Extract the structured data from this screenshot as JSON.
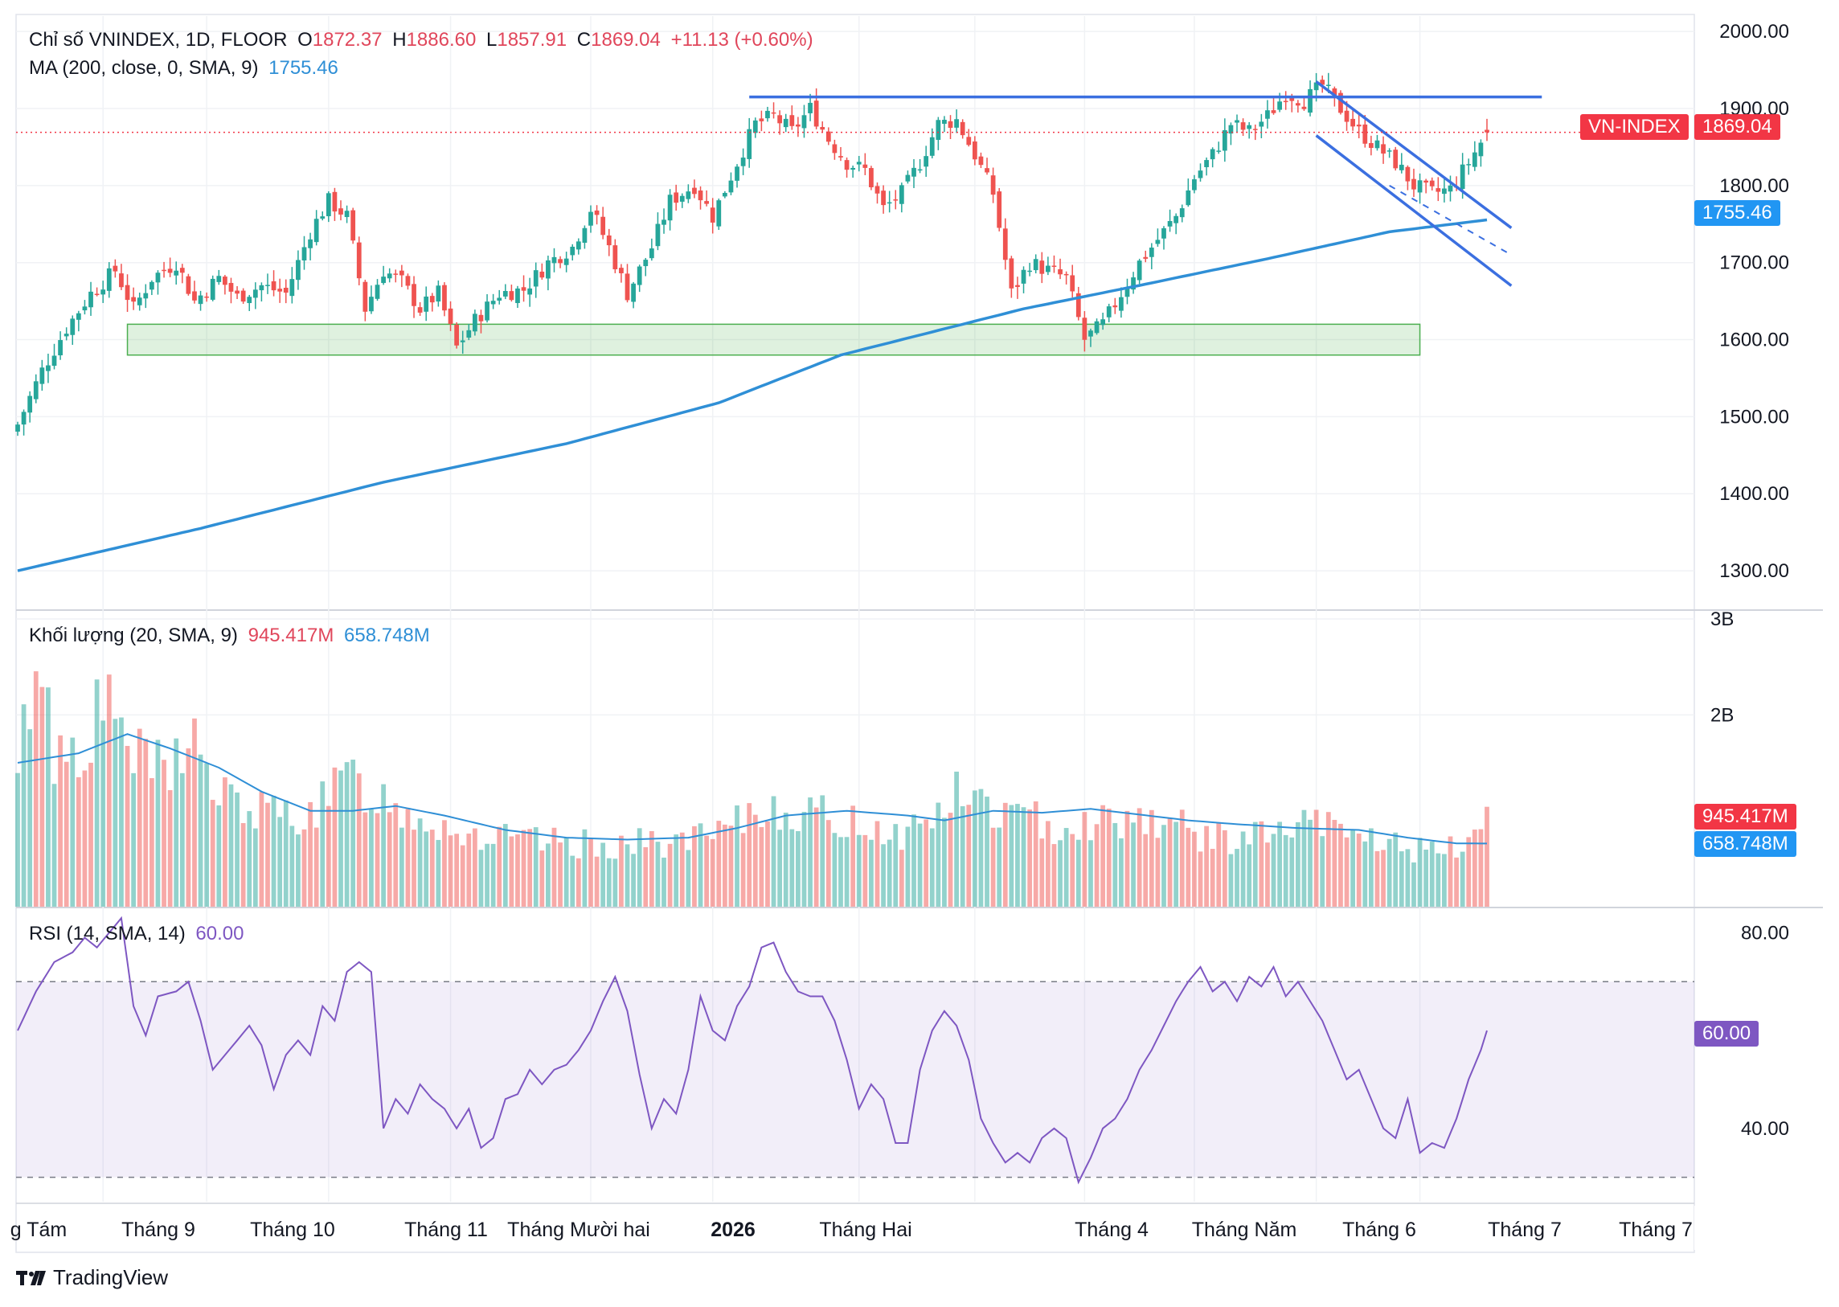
{
  "legend": {
    "main": {
      "title": "Chỉ số VNINDEX, 1D, FLOOR",
      "o_label": "O",
      "o_value": "1872.37",
      "h_label": "H",
      "h_value": "1886.60",
      "l_label": "L",
      "l_value": "1857.91",
      "c_label": "C",
      "c_value": "1869.04",
      "change": "+11.13 (+0.60%)"
    },
    "ma": {
      "label": "MA (200, close, 0, SMA, 9)",
      "value": "1755.46"
    },
    "volume": {
      "label": "Khối lượng (20, SMA, 9)",
      "value1": "945.417M",
      "value2": "658.748M"
    },
    "rsi": {
      "label": "RSI (14, SMA, 14)",
      "value": "60.00"
    }
  },
  "tags": {
    "symbol": "VN-INDEX",
    "price": "1869.04",
    "ma": "1755.46",
    "vol1": "945.417M",
    "vol2": "658.748M",
    "rsi": "60.00"
  },
  "brand": "TradingView",
  "colors": {
    "up": "#26a69a",
    "down": "#ef5350",
    "ma": "#2f8fd6",
    "trendline": "#3b6fe0",
    "zone": "#4caf50",
    "rsi": "#7e57c2"
  },
  "chart_data": [
    {
      "type": "candlestick",
      "title": "Chỉ số VNINDEX, 1D, FLOOR",
      "y_ticks": [
        "2000.00",
        "1900.00",
        "1800.00",
        "1700.00",
        "1600.00",
        "1500.00",
        "1400.00",
        "1300.00"
      ],
      "ylim": [
        1250,
        2020
      ],
      "x_ticks": [
        "g Tám",
        "Tháng 9",
        "Tháng 10",
        "Tháng 11",
        "Tháng Mười hai",
        "2026",
        "Tháng Hai",
        "Tháng 4",
        "Tháng Năm",
        "Tháng 6",
        "Tháng 7",
        "Tháng 7"
      ],
      "close_path": [
        [
          0,
          1490
        ],
        [
          4,
          1560
        ],
        [
          8,
          1615
        ],
        [
          12,
          1660
        ],
        [
          16,
          1690
        ],
        [
          19,
          1640
        ],
        [
          22,
          1680
        ],
        [
          26,
          1700
        ],
        [
          29,
          1650
        ],
        [
          33,
          1680
        ],
        [
          36,
          1655
        ],
        [
          40,
          1670
        ],
        [
          44,
          1660
        ],
        [
          48,
          1740
        ],
        [
          51,
          1780
        ],
        [
          54,
          1760
        ],
        [
          57,
          1640
        ],
        [
          60,
          1690
        ],
        [
          63,
          1675
        ],
        [
          66,
          1640
        ],
        [
          69,
          1660
        ],
        [
          72,
          1590
        ],
        [
          75,
          1625
        ],
        [
          79,
          1660
        ],
        [
          83,
          1665
        ],
        [
          87,
          1700
        ],
        [
          91,
          1720
        ],
        [
          94,
          1770
        ],
        [
          97,
          1720
        ],
        [
          100,
          1660
        ],
        [
          104,
          1720
        ],
        [
          107,
          1780
        ],
        [
          111,
          1800
        ],
        [
          114,
          1760
        ],
        [
          118,
          1830
        ],
        [
          121,
          1880
        ],
        [
          124,
          1890
        ],
        [
          127,
          1870
        ],
        [
          130,
          1900
        ],
        [
          133,
          1860
        ],
        [
          136,
          1830
        ],
        [
          139,
          1820
        ],
        [
          142,
          1770
        ],
        [
          145,
          1790
        ],
        [
          148,
          1830
        ],
        [
          151,
          1880
        ],
        [
          154,
          1885
        ],
        [
          157,
          1840
        ],
        [
          160,
          1790
        ],
        [
          163,
          1660
        ],
        [
          166,
          1700
        ],
        [
          169,
          1690
        ],
        [
          172,
          1680
        ],
        [
          175,
          1600
        ],
        [
          178,
          1620
        ],
        [
          181,
          1660
        ],
        [
          184,
          1700
        ],
        [
          187,
          1730
        ],
        [
          190,
          1760
        ],
        [
          193,
          1810
        ],
        [
          196,
          1840
        ],
        [
          199,
          1880
        ],
        [
          202,
          1870
        ],
        [
          205,
          1890
        ],
        [
          208,
          1920
        ],
        [
          211,
          1910
        ],
        [
          214,
          1930
        ],
        [
          217,
          1900
        ],
        [
          220,
          1870
        ],
        [
          223,
          1850
        ],
        [
          226,
          1830
        ],
        [
          229,
          1800
        ],
        [
          232,
          1790
        ],
        [
          235,
          1795
        ],
        [
          238,
          1830
        ],
        [
          241,
          1869.04
        ]
      ],
      "n_bars": 242,
      "last": {
        "open": 1872.37,
        "high": 1886.6,
        "low": 1857.91,
        "close": 1869.04,
        "change": 11.13,
        "change_pct": 0.6
      },
      "ma200": {
        "name": "MA (200, close, 0, SMA, 9)",
        "path": [
          [
            0,
            1300
          ],
          [
            30,
            1355
          ],
          [
            60,
            1415
          ],
          [
            90,
            1465
          ],
          [
            115,
            1518
          ],
          [
            135,
            1580
          ],
          [
            150,
            1610
          ],
          [
            165,
            1640
          ],
          [
            185,
            1672
          ],
          [
            205,
            1705
          ],
          [
            225,
            1740
          ],
          [
            241,
            1755.46
          ]
        ],
        "last": 1755.46
      },
      "support_zone": {
        "from_bar": 18,
        "to_bar": 230,
        "low": 1580,
        "high": 1620
      },
      "resistance_line": {
        "from_bar": 120,
        "to_bar": 250,
        "value": 1915
      },
      "channel": {
        "upper": [
          [
            213,
            1935
          ],
          [
            245,
            1745
          ]
        ],
        "lower": [
          [
            213,
            1865
          ],
          [
            245,
            1670
          ]
        ],
        "mid_dashed": [
          [
            225,
            1800
          ],
          [
            245,
            1710
          ]
        ]
      },
      "current_price_line": 1869.04
    },
    {
      "type": "bar",
      "title": "Khối lượng (20, SMA, 9)",
      "y_ticks": [
        "3B",
        "2B"
      ],
      "ylim": [
        0,
        3.0
      ],
      "units": "B",
      "last_volume": "945.417M",
      "last_sma": "658.748M",
      "volume_path": [
        [
          0,
          1.25
        ],
        [
          3,
          2.8
        ],
        [
          6,
          1.6
        ],
        [
          10,
          1.7
        ],
        [
          14,
          2.05
        ],
        [
          17,
          1.9
        ],
        [
          20,
          1.5
        ],
        [
          25,
          1.4
        ],
        [
          28,
          1.9
        ],
        [
          32,
          1.2
        ],
        [
          38,
          1.0
        ],
        [
          45,
          0.95
        ],
        [
          50,
          1.05
        ],
        [
          54,
          1.35
        ],
        [
          58,
          1.2
        ],
        [
          62,
          1.05
        ],
        [
          68,
          0.9
        ],
        [
          74,
          0.75
        ],
        [
          80,
          0.7
        ],
        [
          90,
          0.65
        ],
        [
          100,
          0.65
        ],
        [
          110,
          0.68
        ],
        [
          116,
          0.75
        ],
        [
          120,
          0.95
        ],
        [
          125,
          1.05
        ],
        [
          130,
          0.95
        ],
        [
          140,
          0.85
        ],
        [
          145,
          0.75
        ],
        [
          150,
          0.95
        ],
        [
          155,
          1.2
        ],
        [
          160,
          1.0
        ],
        [
          166,
          0.9
        ],
        [
          172,
          0.85
        ],
        [
          178,
          0.9
        ],
        [
          185,
          0.95
        ],
        [
          190,
          0.85
        ],
        [
          196,
          0.7
        ],
        [
          205,
          0.75
        ],
        [
          213,
          0.85
        ],
        [
          220,
          0.75
        ],
        [
          226,
          0.65
        ],
        [
          232,
          0.55
        ],
        [
          236,
          0.6
        ],
        [
          241,
          0.95
        ]
      ],
      "sma_path": [
        [
          0,
          1.5
        ],
        [
          10,
          1.6
        ],
        [
          18,
          1.8
        ],
        [
          25,
          1.65
        ],
        [
          33,
          1.45
        ],
        [
          40,
          1.2
        ],
        [
          48,
          1.0
        ],
        [
          55,
          1.0
        ],
        [
          62,
          1.05
        ],
        [
          70,
          0.95
        ],
        [
          80,
          0.8
        ],
        [
          90,
          0.72
        ],
        [
          100,
          0.7
        ],
        [
          110,
          0.72
        ],
        [
          118,
          0.82
        ],
        [
          126,
          0.95
        ],
        [
          136,
          1.0
        ],
        [
          146,
          0.95
        ],
        [
          152,
          0.9
        ],
        [
          160,
          1.0
        ],
        [
          168,
          0.98
        ],
        [
          176,
          1.02
        ],
        [
          184,
          0.96
        ],
        [
          192,
          0.9
        ],
        [
          200,
          0.86
        ],
        [
          210,
          0.82
        ],
        [
          220,
          0.8
        ],
        [
          228,
          0.72
        ],
        [
          236,
          0.66
        ],
        [
          241,
          0.658748
        ]
      ]
    },
    {
      "type": "line",
      "title": "RSI (14, SMA, 14)",
      "y_ticks": [
        "80.00",
        "40.00"
      ],
      "ylim": [
        25,
        85
      ],
      "bands": [
        30,
        70
      ],
      "last": 60.0,
      "path": [
        [
          0,
          60
        ],
        [
          3,
          68
        ],
        [
          6,
          74
        ],
        [
          9,
          76
        ],
        [
          11,
          79
        ],
        [
          13,
          77
        ],
        [
          15,
          80
        ],
        [
          17,
          83
        ],
        [
          19,
          65
        ],
        [
          21,
          59
        ],
        [
          23,
          67
        ],
        [
          26,
          68
        ],
        [
          28,
          70
        ],
        [
          30,
          62
        ],
        [
          32,
          52
        ],
        [
          34,
          55
        ],
        [
          36,
          58
        ],
        [
          38,
          61
        ],
        [
          40,
          57
        ],
        [
          42,
          48
        ],
        [
          44,
          55
        ],
        [
          46,
          58
        ],
        [
          48,
          55
        ],
        [
          50,
          65
        ],
        [
          52,
          62
        ],
        [
          54,
          72
        ],
        [
          56,
          74
        ],
        [
          58,
          72
        ],
        [
          60,
          40
        ],
        [
          62,
          46
        ],
        [
          64,
          43
        ],
        [
          66,
          49
        ],
        [
          68,
          46
        ],
        [
          70,
          44
        ],
        [
          72,
          40
        ],
        [
          74,
          44
        ],
        [
          76,
          36
        ],
        [
          78,
          38
        ],
        [
          80,
          46
        ],
        [
          82,
          47
        ],
        [
          84,
          52
        ],
        [
          86,
          49
        ],
        [
          88,
          52
        ],
        [
          90,
          53
        ],
        [
          92,
          56
        ],
        [
          94,
          60
        ],
        [
          96,
          66
        ],
        [
          98,
          71
        ],
        [
          100,
          64
        ],
        [
          102,
          51
        ],
        [
          104,
          40
        ],
        [
          106,
          46
        ],
        [
          108,
          43
        ],
        [
          110,
          52
        ],
        [
          112,
          67
        ],
        [
          114,
          60
        ],
        [
          116,
          58
        ],
        [
          118,
          65
        ],
        [
          120,
          69
        ],
        [
          122,
          77
        ],
        [
          124,
          78
        ],
        [
          126,
          72
        ],
        [
          128,
          68
        ],
        [
          130,
          67
        ],
        [
          132,
          67
        ],
        [
          134,
          62
        ],
        [
          136,
          54
        ],
        [
          138,
          44
        ],
        [
          140,
          49
        ],
        [
          142,
          46
        ],
        [
          144,
          37
        ],
        [
          146,
          37
        ],
        [
          148,
          52
        ],
        [
          150,
          60
        ],
        [
          152,
          64
        ],
        [
          154,
          61
        ],
        [
          156,
          54
        ],
        [
          158,
          42
        ],
        [
          160,
          37
        ],
        [
          162,
          33
        ],
        [
          164,
          35
        ],
        [
          166,
          33
        ],
        [
          168,
          38
        ],
        [
          170,
          40
        ],
        [
          172,
          38
        ],
        [
          174,
          29
        ],
        [
          176,
          34
        ],
        [
          178,
          40
        ],
        [
          180,
          42
        ],
        [
          182,
          46
        ],
        [
          184,
          52
        ],
        [
          186,
          56
        ],
        [
          188,
          61
        ],
        [
          190,
          66
        ],
        [
          192,
          70
        ],
        [
          194,
          73
        ],
        [
          196,
          68
        ],
        [
          198,
          70
        ],
        [
          200,
          66
        ],
        [
          202,
          71
        ],
        [
          204,
          69
        ],
        [
          206,
          73
        ],
        [
          208,
          67
        ],
        [
          210,
          70
        ],
        [
          212,
          66
        ],
        [
          214,
          62
        ],
        [
          216,
          56
        ],
        [
          218,
          50
        ],
        [
          220,
          52
        ],
        [
          222,
          46
        ],
        [
          224,
          40
        ],
        [
          226,
          38
        ],
        [
          228,
          46
        ],
        [
          230,
          35
        ],
        [
          232,
          37
        ],
        [
          234,
          36
        ],
        [
          236,
          42
        ],
        [
          238,
          50
        ],
        [
          240,
          56
        ],
        [
          241,
          60
        ]
      ]
    }
  ]
}
